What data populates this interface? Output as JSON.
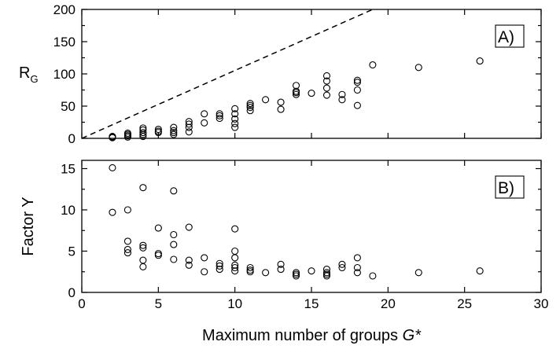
{
  "chart_data": [
    {
      "type": "scatter",
      "panel": "A)",
      "ylabel": "R",
      "ylabel_subscript": "G",
      "xlim": [
        0,
        30
      ],
      "ylim": [
        0,
        200
      ],
      "yticks": [
        "0",
        "50",
        "100",
        "150",
        "200"
      ],
      "reference_line": {
        "style": "dashed",
        "points": [
          [
            0,
            0
          ],
          [
            19,
            200
          ]
        ]
      },
      "points": [
        [
          2,
          1
        ],
        [
          2,
          2
        ],
        [
          2,
          3
        ],
        [
          3,
          2
        ],
        [
          3,
          4
        ],
        [
          3,
          6
        ],
        [
          3,
          8
        ],
        [
          4,
          3
        ],
        [
          4,
          6
        ],
        [
          4,
          9
        ],
        [
          4,
          13
        ],
        [
          4,
          16
        ],
        [
          5,
          9
        ],
        [
          5,
          11
        ],
        [
          5,
          14
        ],
        [
          6,
          6
        ],
        [
          6,
          9
        ],
        [
          6,
          12
        ],
        [
          6,
          17
        ],
        [
          7,
          10
        ],
        [
          7,
          17
        ],
        [
          7,
          22
        ],
        [
          7,
          26
        ],
        [
          8,
          24
        ],
        [
          8,
          38
        ],
        [
          9,
          31
        ],
        [
          9,
          35
        ],
        [
          9,
          38
        ],
        [
          10,
          17
        ],
        [
          10,
          23
        ],
        [
          10,
          30
        ],
        [
          10,
          38
        ],
        [
          10,
          46
        ],
        [
          11,
          43
        ],
        [
          11,
          48
        ],
        [
          11,
          51
        ],
        [
          11,
          54
        ],
        [
          12,
          60
        ],
        [
          13,
          45
        ],
        [
          13,
          56
        ],
        [
          14,
          68
        ],
        [
          14,
          71
        ],
        [
          14,
          73
        ],
        [
          14,
          82
        ],
        [
          15,
          70
        ],
        [
          16,
          67
        ],
        [
          16,
          78
        ],
        [
          16,
          89
        ],
        [
          16,
          97
        ],
        [
          17,
          60
        ],
        [
          17,
          68
        ],
        [
          18,
          51
        ],
        [
          18,
          75
        ],
        [
          18,
          87
        ],
        [
          18,
          90
        ],
        [
          19,
          114
        ],
        [
          22,
          110
        ],
        [
          26,
          120
        ]
      ]
    },
    {
      "type": "scatter",
      "panel": "B)",
      "ylabel": "Factor Y",
      "xlabel_text": "Maximum number of groups ",
      "xlabel_italic": "G*",
      "xlim": [
        0,
        30
      ],
      "ylim": [
        0,
        16
      ],
      "xticks": [
        "0",
        "5",
        "10",
        "15",
        "20",
        "25",
        "30"
      ],
      "yticks": [
        "0",
        "5",
        "10",
        "15"
      ],
      "points": [
        [
          2,
          15.1
        ],
        [
          2,
          9.7
        ],
        [
          3,
          10.0
        ],
        [
          3,
          6.2
        ],
        [
          3,
          5.2
        ],
        [
          3,
          4.8
        ],
        [
          4,
          12.7
        ],
        [
          4,
          5.7
        ],
        [
          4,
          5.4
        ],
        [
          4,
          3.9
        ],
        [
          4,
          3.1
        ],
        [
          5,
          7.8
        ],
        [
          5,
          4.7
        ],
        [
          5,
          4.5
        ],
        [
          6,
          12.3
        ],
        [
          6,
          7.0
        ],
        [
          6,
          5.8
        ],
        [
          6,
          4.0
        ],
        [
          7,
          7.9
        ],
        [
          7,
          3.9
        ],
        [
          7,
          3.3
        ],
        [
          8,
          4.2
        ],
        [
          8,
          2.5
        ],
        [
          9,
          3.5
        ],
        [
          9,
          3.2
        ],
        [
          9,
          2.8
        ],
        [
          10,
          7.7
        ],
        [
          10,
          5.0
        ],
        [
          10,
          4.2
        ],
        [
          10,
          3.3
        ],
        [
          10,
          3.0
        ],
        [
          10,
          2.6
        ],
        [
          11,
          3.0
        ],
        [
          11,
          2.7
        ],
        [
          11,
          2.5
        ],
        [
          12,
          2.4
        ],
        [
          13,
          3.4
        ],
        [
          13,
          2.8
        ],
        [
          14,
          2.4
        ],
        [
          14,
          2.2
        ],
        [
          14,
          2.0
        ],
        [
          15,
          2.6
        ],
        [
          16,
          2.8
        ],
        [
          16,
          2.4
        ],
        [
          16,
          2.2
        ],
        [
          16,
          2.0
        ],
        [
          17,
          3.4
        ],
        [
          17,
          3.0
        ],
        [
          18,
          4.2
        ],
        [
          18,
          3.0
        ],
        [
          18,
          2.4
        ],
        [
          19,
          2.0
        ],
        [
          22,
          2.4
        ],
        [
          26,
          2.6
        ]
      ]
    }
  ]
}
